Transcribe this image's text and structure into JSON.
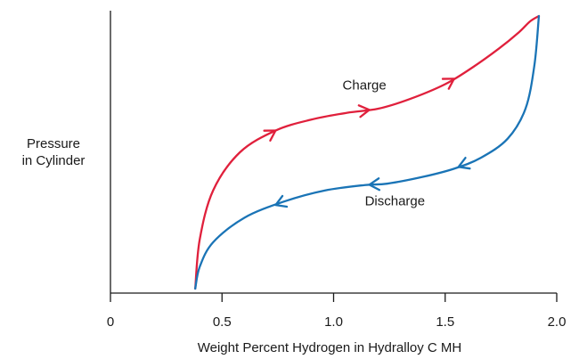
{
  "chart_data": {
    "type": "line",
    "xlabel": "Weight Percent Hydrogen in Hydralloy C MH",
    "ylabel": [
      "Pressure",
      "in Cylinder"
    ],
    "xlim": [
      0,
      2.0
    ],
    "x_ticks": [
      0,
      0.5,
      1.0,
      1.5,
      2.0
    ],
    "x_tick_labels": [
      "0",
      "0.5",
      "1.0",
      "1.5",
      "2.0"
    ],
    "y_ticks": [],
    "grid": false,
    "y_scale": "relative",
    "series": [
      {
        "name": "Charge",
        "color": "#e0203c",
        "direction": "increasing",
        "x": [
          0.38,
          0.4,
          0.46,
          0.58,
          0.74,
          0.9,
          1.06,
          1.2,
          1.34,
          1.5,
          1.62,
          1.74,
          1.83,
          1.88,
          1.92
        ],
        "y": [
          0.0,
          0.18,
          0.36,
          0.5,
          0.58,
          0.62,
          0.645,
          0.66,
          0.695,
          0.75,
          0.81,
          0.88,
          0.94,
          0.98,
          1.0
        ]
      },
      {
        "name": "Discharge",
        "color": "#1a74b6",
        "direction": "decreasing",
        "x": [
          1.92,
          1.9,
          1.86,
          1.78,
          1.66,
          1.54,
          1.4,
          1.24,
          1.14,
          0.96,
          0.78,
          0.6,
          0.46,
          0.4,
          0.38
        ],
        "y": [
          1.0,
          0.82,
          0.66,
          0.55,
          0.48,
          0.44,
          0.41,
          0.385,
          0.38,
          0.36,
          0.32,
          0.26,
          0.17,
          0.08,
          0.0
        ]
      }
    ],
    "annotations": [
      {
        "text": "Charge",
        "series": 0,
        "x": 1.04,
        "y": 0.73
      },
      {
        "text": "Discharge",
        "series": 1,
        "x": 1.14,
        "y": 0.305
      }
    ],
    "arrows": [
      {
        "series": 0,
        "x": 0.74
      },
      {
        "series": 0,
        "x": 1.16
      },
      {
        "series": 0,
        "x": 1.54
      },
      {
        "series": 1,
        "x": 1.56
      },
      {
        "series": 1,
        "x": 1.16
      },
      {
        "series": 1,
        "x": 0.74
      }
    ]
  }
}
